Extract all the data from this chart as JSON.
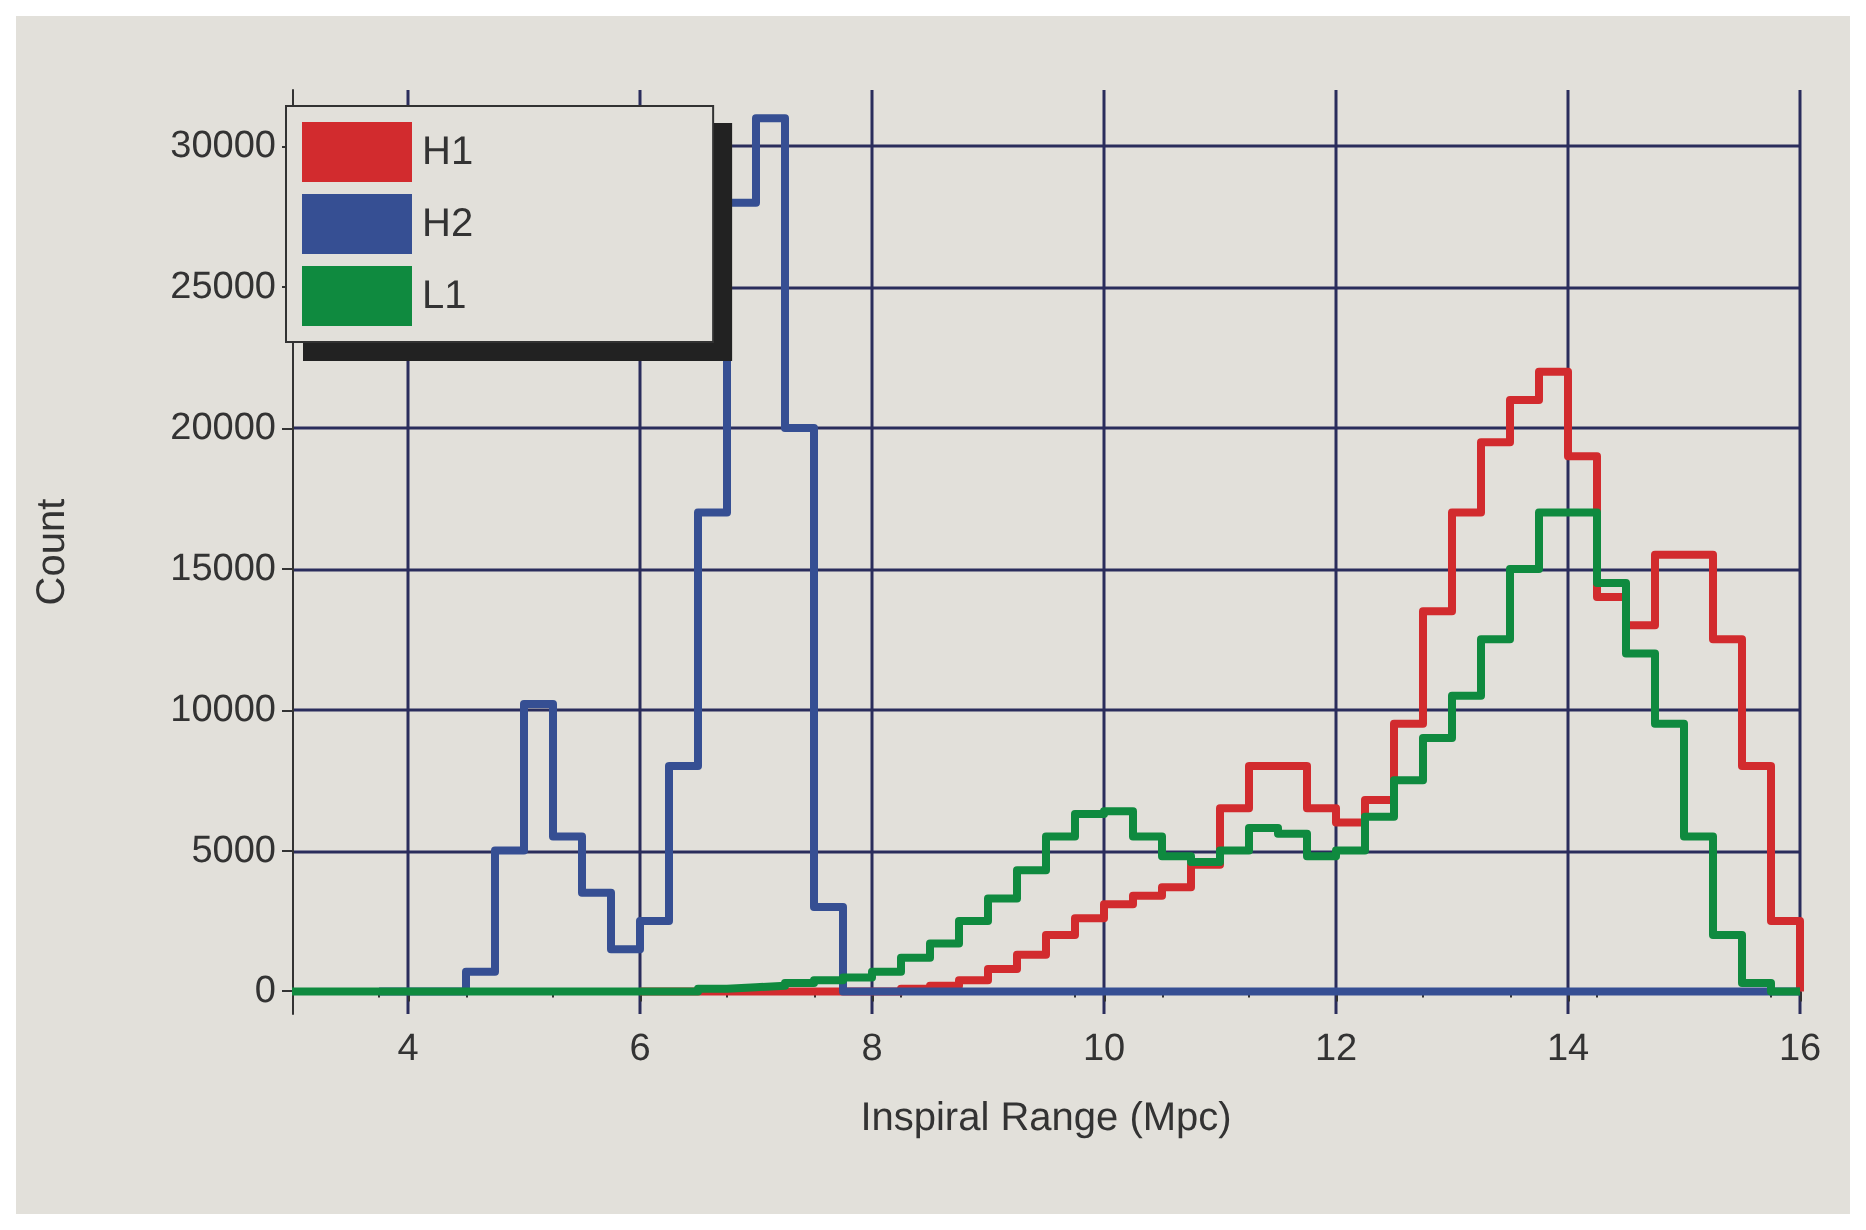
{
  "chart_data": {
    "type": "step",
    "xlabel": "Inspiral Range (Mpc)",
    "ylabel": "Count",
    "x": [
      3,
      3.25,
      3.5,
      3.75,
      4,
      4.25,
      4.5,
      4.75,
      5,
      5.25,
      5.5,
      5.75,
      6,
      6.25,
      6.5,
      6.75,
      7,
      7.25,
      7.5,
      7.75,
      8,
      8.25,
      8.5,
      8.75,
      9,
      9.25,
      9.5,
      9.75,
      10,
      10.25,
      10.5,
      10.75,
      11,
      11.25,
      11.5,
      11.75,
      12,
      12.25,
      12.5,
      12.75,
      13,
      13.25,
      13.5,
      13.75,
      14,
      14.25,
      14.5,
      14.75,
      15,
      15.25,
      15.5,
      15.75,
      16
    ],
    "series": [
      {
        "name": "H1",
        "color": "#d22b2e",
        "values": [
          null,
          null,
          null,
          null,
          null,
          null,
          null,
          null,
          null,
          null,
          null,
          null,
          0,
          0,
          0,
          0,
          0,
          0,
          0,
          0,
          0,
          100,
          200,
          400,
          800,
          1300,
          2000,
          2600,
          3100,
          3400,
          3700,
          4500,
          6500,
          8000,
          8000,
          6500,
          6000,
          6800,
          9500,
          13500,
          17000,
          19500,
          21000,
          22000,
          19000,
          14000,
          13000,
          15500,
          15500,
          12500,
          8000,
          2500,
          0
        ]
      },
      {
        "name": "H2",
        "color": "#364f93",
        "values": [
          null,
          null,
          null,
          0,
          0,
          0,
          700,
          5000,
          10200,
          5500,
          3500,
          1500,
          2500,
          8000,
          17000,
          28000,
          31000,
          20000,
          3000,
          0,
          0,
          0,
          0,
          0,
          0,
          0,
          0,
          0,
          0,
          0,
          0,
          0,
          0,
          0,
          0,
          0,
          0,
          0,
          0,
          0,
          0,
          0,
          0,
          0,
          0,
          0,
          0,
          0,
          0,
          0,
          0,
          0,
          0
        ]
      },
      {
        "name": "L1",
        "color": "#0f8a3f",
        "values": [
          0,
          0,
          0,
          0,
          0,
          0,
          0,
          0,
          0,
          0,
          0,
          0,
          0,
          0,
          100,
          150,
          200,
          300,
          400,
          500,
          700,
          1200,
          1700,
          2500,
          3300,
          4300,
          5500,
          6300,
          6400,
          5500,
          4800,
          4600,
          5000,
          5800,
          5600,
          4800,
          5000,
          6200,
          7500,
          9000,
          10500,
          12500,
          15000,
          17000,
          17000,
          14500,
          12000,
          9500,
          5500,
          2000,
          300,
          0,
          0
        ]
      }
    ],
    "xlim": [
      3,
      16
    ],
    "xticks": [
      4,
      6,
      8,
      10,
      12,
      14,
      16
    ],
    "ylim": [
      -800,
      32000
    ],
    "yticks": [
      0,
      5000,
      10000,
      15000,
      20000,
      25000,
      30000
    ],
    "grid": true,
    "legend": "top left"
  }
}
